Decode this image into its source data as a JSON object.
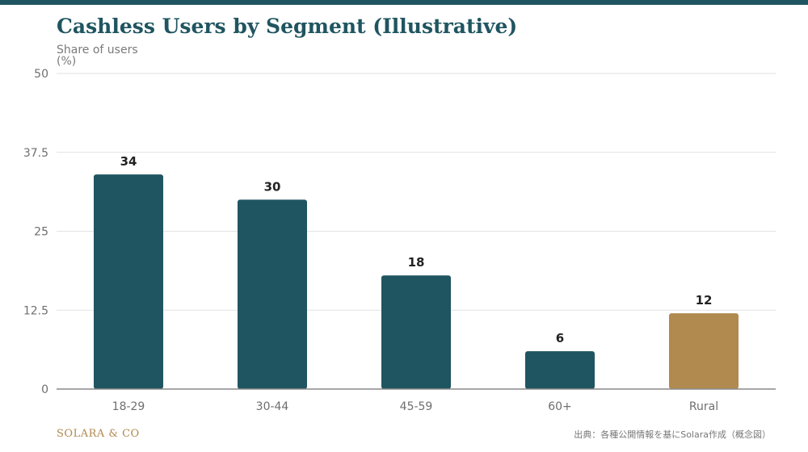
{
  "colors": {
    "accent": "#1f5560",
    "highlight": "#b08a4e",
    "brand": "#b08a4e"
  },
  "chart_data": {
    "type": "bar",
    "title": "Cashless Users by Segment (Illustrative)",
    "ylabel": "Share of users (%)",
    "xlabel": "",
    "categories": [
      "18-29",
      "30-44",
      "45-59",
      "60+",
      "Rural"
    ],
    "values": [
      34,
      30,
      18,
      6,
      12
    ],
    "bar_colors": [
      "#1f5560",
      "#1f5560",
      "#1f5560",
      "#1f5560",
      "#b08a4e"
    ],
    "ylim": [
      0,
      50
    ],
    "yticks": [
      "0",
      "12.5",
      "25",
      "37.5",
      "50"
    ],
    "grid": true
  },
  "footer": {
    "brand": "SOLARA & CO",
    "source": "出典：各種公開情報を基にSolara作成（概念図）"
  }
}
